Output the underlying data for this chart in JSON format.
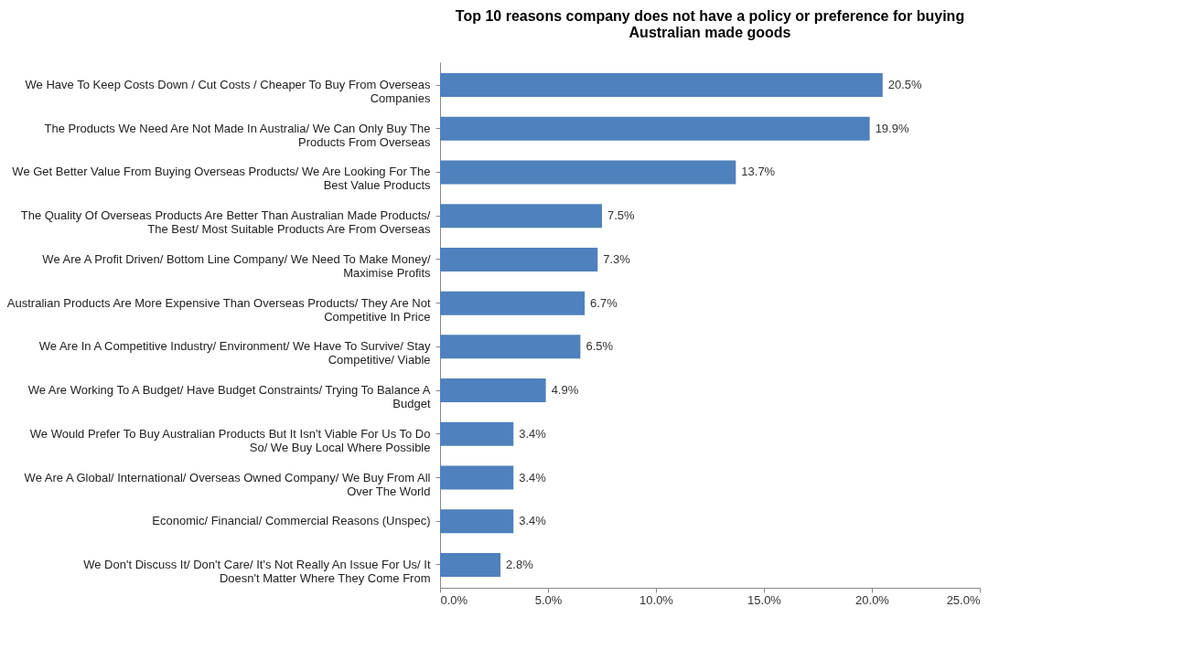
{
  "chart_data": {
    "type": "bar",
    "orientation": "horizontal",
    "title": "Top 10 reasons company does not have a policy or preference for buying Australian made goods",
    "categories": [
      "We Have To Keep Costs Down / Cut Costs / Cheaper To Buy From Overseas Companies",
      "The Products We Need Are Not Made In Australia/ We Can Only Buy The Products From Overseas",
      "We Get Better Value From Buying Overseas Products/ We Are Looking For The Best Value Products",
      "The Quality Of Overseas Products Are Better Than Australian Made Products/ The Best/ Most Suitable Products Are From Overseas",
      "We Are A Profit Driven/ Bottom Line Company/ We Need To Make Money/ Maximise Profits",
      "Australian Products Are More Expensive Than Overseas Products/ They Are Not Competitive In Price",
      "We Are In A Competitive Industry/ Environment/ We Have To Survive/ Stay Competitive/ Viable",
      "We Are Working To A Budget/ Have Budget Constraints/ Trying To Balance A Budget",
      "We Would Prefer To Buy Australian Products But It Isn't Viable For Us To Do So/ We Buy Local Where Possible",
      "We Are A Global/ International/ Overseas Owned Company/ We Buy From All Over The World",
      "Economic/ Financial/ Commercial Reasons (Unspec)",
      "We Don't Discuss It/ Don't Care/ It's Not Really An Issue For Us/ It Doesn't Matter Where They Come From"
    ],
    "values": [
      20.5,
      19.9,
      13.7,
      7.5,
      7.3,
      6.7,
      6.5,
      4.9,
      3.4,
      3.4,
      3.4,
      2.8
    ],
    "value_labels": [
      "20.5%",
      "19.9%",
      "13.7%",
      "7.5%",
      "7.3%",
      "6.7%",
      "6.5%",
      "4.9%",
      "3.4%",
      "3.4%",
      "3.4%",
      "2.8%"
    ],
    "color": "#4f81bd",
    "xlim": [
      0,
      25
    ],
    "xticks": [
      {
        "value": 0,
        "label": "0.0%"
      },
      {
        "value": 5,
        "label": "5.0%"
      },
      {
        "value": 10,
        "label": "10.0%"
      },
      {
        "value": 15,
        "label": "15.0%"
      },
      {
        "value": 20,
        "label": "20.0%"
      },
      {
        "value": 25,
        "label": "25.0%"
      }
    ],
    "grid": false
  }
}
